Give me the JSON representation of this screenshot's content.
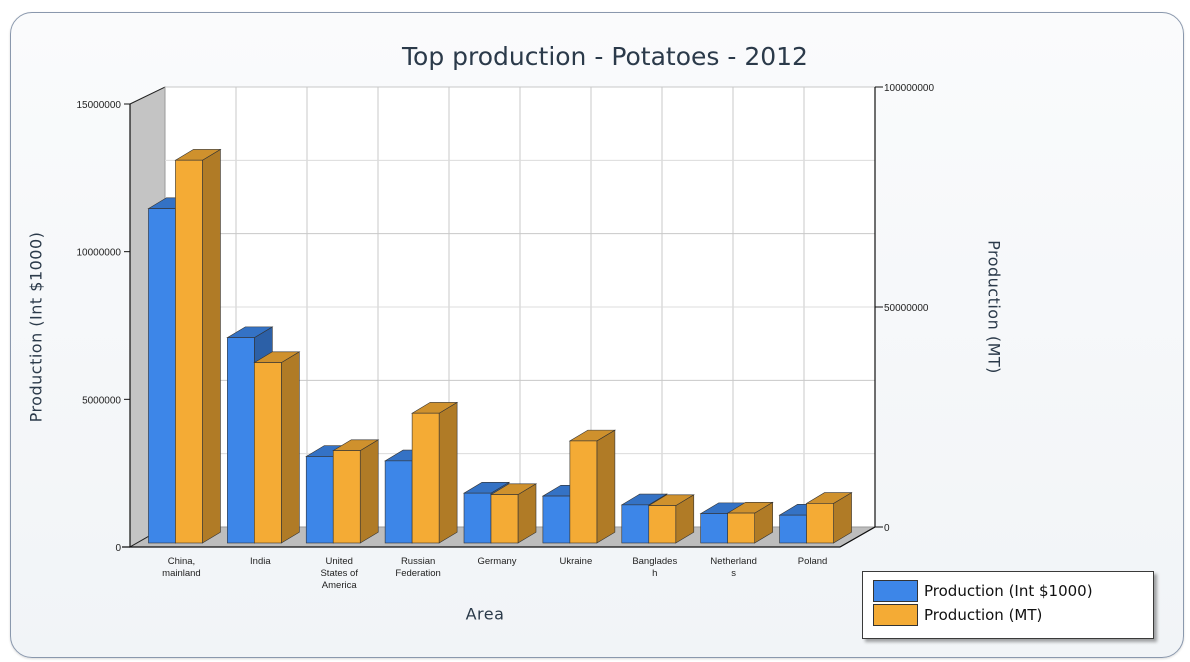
{
  "chart_data": {
    "type": "bar",
    "title": "Top production - Potatoes - 2012",
    "xlabel": "Area",
    "ylabel": "Production (Int $1000)",
    "y2label": "Production (MT)",
    "categories": [
      [
        "China,",
        "mainland"
      ],
      [
        "India"
      ],
      [
        "United",
        "States of",
        "America"
      ],
      [
        "Russian",
        "Federation"
      ],
      [
        "Germany"
      ],
      [
        "Ukraine"
      ],
      [
        "Banglades",
        "h"
      ],
      [
        "Netherland",
        "s"
      ],
      [
        "Poland"
      ]
    ],
    "series": [
      {
        "name": "Production (Int $1000)",
        "axis": "left",
        "color": "#3d86e8",
        "values": [
          11400000,
          7000000,
          2950000,
          2800000,
          1700000,
          1600000,
          1300000,
          1000000,
          950000
        ]
      },
      {
        "name": "Production (MT)",
        "axis": "right",
        "color": "#f4ab35",
        "values": [
          87000000,
          41000000,
          21000000,
          29500000,
          11000000,
          23200000,
          8500000,
          6800000,
          9000000
        ]
      }
    ],
    "ylim": [
      0,
      15000000
    ],
    "yticks": [
      "0",
      "5000000",
      "10000000",
      "15000000"
    ],
    "y2lim": [
      0,
      100000000
    ],
    "y2ticks": [
      "0",
      "50000000",
      "100000000"
    ],
    "grid": true,
    "legend_position": "bottom-right"
  }
}
